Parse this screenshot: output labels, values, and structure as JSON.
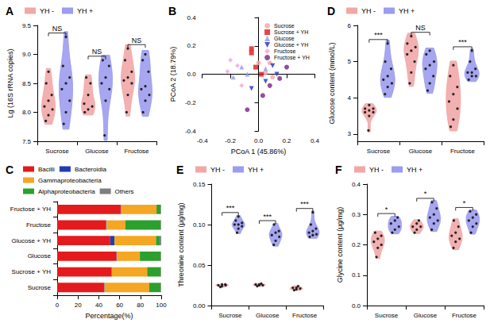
{
  "chart_data": [
    {
      "type": "violin",
      "title": "A",
      "y_label": "Lg (16S rRNA copies)",
      "categories": [
        "Sucrose",
        "Glucose",
        "Fructose"
      ],
      "ylim": [
        7.5,
        9.5
      ],
      "yticks": [
        7.5,
        {
          "value": 8,
          "label": "8.0"
        },
        8.5,
        {
          "value": 9,
          "label": "9.0"
        },
        9.5
      ],
      "legend": "top",
      "annotations": [
        "NS",
        "NS",
        "NS"
      ],
      "series": [
        {
          "name": "YH -",
          "color": "#f2a7a7",
          "values": [
            [
              7.85,
              7.95,
              8.05,
              8.1,
              8.2,
              8.3,
              8.5,
              8.7
            ],
            [
              8.0,
              8.05,
              8.1,
              8.15,
              8.3,
              8.5,
              8.6
            ],
            [
              8.0,
              8.3,
              8.5,
              8.55,
              8.6,
              8.7,
              8.9,
              9.1
            ]
          ]
        },
        {
          "name": "YH +",
          "color": "#9c9cf0",
          "values": [
            [
              7.8,
              8.0,
              8.2,
              8.4,
              8.5,
              8.6,
              8.8,
              9.3
            ],
            [
              7.6,
              8.2,
              8.4,
              8.5,
              8.6,
              8.8,
              8.9
            ],
            [
              8.0,
              8.2,
              8.3,
              8.4,
              8.45,
              8.7,
              8.9,
              9.0
            ]
          ]
        }
      ]
    },
    {
      "type": "scatter",
      "title": "B",
      "x_label": "PCoA 1 (45.86%)",
      "y_label": "PCoA 2 (18.79%)",
      "xlim": [
        -0.4,
        0.4
      ],
      "xticks": [
        -0.4,
        -0.2,
        {
          "value": 0,
          "label": "0.0"
        },
        0.2,
        0.4
      ],
      "ylim": [
        -0.4,
        0.4
      ],
      "yticks": [
        -0.4,
        -0.2,
        {
          "value": 0,
          "label": "0.0"
        },
        0.2,
        0.4
      ],
      "legend": "upper right",
      "series": [
        {
          "name": "Sucrose",
          "color": "#f4a6a6",
          "marker": "circle",
          "values": [
            [
              0.0,
              0.08
            ],
            [
              0.08,
              0.08
            ],
            [
              0.1,
              -0.02
            ],
            [
              0.05,
              0.01
            ]
          ]
        },
        {
          "name": "Sucrose + YH",
          "color": "#e0161b",
          "marker": "square",
          "values": [
            [
              -0.05,
              0.18
            ],
            [
              -0.05,
              0.15
            ],
            [
              -0.02,
              0.05
            ],
            [
              0.02,
              0.0
            ]
          ]
        },
        {
          "name": "Glucose",
          "color": "#8f97e8",
          "marker": "triangle",
          "values": [
            [
              -0.18,
              -0.02
            ],
            [
              -0.12,
              0.05
            ],
            [
              -0.08,
              0.0
            ],
            [
              0.05,
              0.04
            ]
          ]
        },
        {
          "name": "Glucose + YH",
          "color": "#1d2fbf",
          "marker": "triangle-down",
          "values": [
            [
              0.1,
              0.06
            ],
            [
              0.13,
              0.0
            ],
            [
              0.05,
              -0.05
            ],
            [
              -0.05,
              -0.1
            ]
          ]
        },
        {
          "name": "Fructose",
          "color": "#f5a3d6",
          "marker": "diamond",
          "values": [
            [
              -0.2,
              0.1
            ],
            [
              -0.22,
              0.02
            ],
            [
              -0.12,
              -0.08
            ],
            [
              -0.15,
              0.06
            ]
          ]
        },
        {
          "name": "Fructose + YH",
          "color": "#7a1f86",
          "marker": "circle",
          "values": [
            [
              0.2,
              0.05
            ],
            [
              0.15,
              -0.03
            ],
            [
              -0.08,
              -0.25
            ],
            [
              0.03,
              -0.15
            ],
            [
              0.08,
              -0.08
            ]
          ]
        }
      ]
    },
    {
      "type": "bar",
      "title": "C",
      "x_label": "Percentage(%)",
      "orientation": "horizontal",
      "stacked": true,
      "categories": [
        "Sucrose",
        "Sucrose + YH",
        "Glucose",
        "Glucose + YH",
        "Fructose",
        "Fructose + YH"
      ],
      "xlim": [
        0,
        100
      ],
      "xticks": [
        0,
        20,
        40,
        60,
        80,
        100
      ],
      "legend": "top",
      "series": [
        {
          "name": "Bacilli",
          "color": "#e41a1c",
          "values": [
            45,
            52,
            57,
            51,
            47,
            61
          ]
        },
        {
          "name": "Bacteroidia",
          "color": "#1f3cb5",
          "values": [
            0.5,
            0.5,
            0.5,
            4,
            0.5,
            0.5
          ]
        },
        {
          "name": "Gammaproteobacteria",
          "color": "#f5a623",
          "values": [
            43,
            34,
            22,
            40,
            18,
            34
          ]
        },
        {
          "name": "Alphaproteobacteria",
          "color": "#2ca02c",
          "values": [
            11,
            13,
            20,
            4,
            34,
            4
          ]
        },
        {
          "name": "Others",
          "color": "#7f7f7f",
          "values": [
            0.5,
            0.5,
            0.5,
            1,
            0.5,
            0.5
          ]
        }
      ]
    },
    {
      "type": "violin",
      "title": "D",
      "y_label": "Glucose content (mmol/L)",
      "categories": [
        "Sucrose",
        "Glucose",
        "Fructose"
      ],
      "ylim": [
        2.8,
        6
      ],
      "yticks": [
        3,
        4,
        5,
        6
      ],
      "legend": "top",
      "annotations": [
        "***",
        "NS",
        "***"
      ],
      "series": [
        {
          "name": "YH -",
          "color": "#f2a7a7",
          "values": [
            [
              3.1,
              3.5,
              3.6,
              3.6,
              3.65,
              3.7,
              3.7,
              3.8
            ],
            [
              4.4,
              4.7,
              5.0,
              5.2,
              5.3,
              5.4,
              5.5,
              5.7
            ],
            [
              3.2,
              3.4,
              3.7,
              3.9,
              4.1,
              4.3,
              4.6,
              4.9
            ]
          ]
        },
        {
          "name": "YH +",
          "color": "#9c9cf0",
          "values": [
            [
              4.1,
              4.3,
              4.4,
              4.5,
              4.6,
              4.8,
              5.0,
              5.5
            ],
            [
              4.2,
              4.4,
              4.6,
              4.8,
              4.9,
              5.0,
              5.2,
              5.3
            ],
            [
              4.5,
              4.6,
              4.6,
              4.7,
              4.7,
              4.8,
              5.0,
              5.3
            ]
          ]
        }
      ]
    },
    {
      "type": "violin",
      "title": "E",
      "y_label": "Threonine content (μg/mg)",
      "categories": [
        "Sucrose",
        "Glucose",
        "Fructose"
      ],
      "ylim": [
        0,
        0.15
      ],
      "yticks": [
        {
          "value": 0,
          "label": "0.00"
        },
        {
          "value": 0.05,
          "label": "0.05"
        },
        {
          "value": 0.1,
          "label": "0.10"
        },
        {
          "value": 0.15,
          "label": "0.15"
        }
      ],
      "legend": "top",
      "annotations": [
        "***",
        "***",
        "***"
      ],
      "series": [
        {
          "name": "YH -",
          "color": "#f2a7a7",
          "values": [
            [
              0.023,
              0.024,
              0.025,
              0.025,
              0.026,
              0.026
            ],
            [
              0.024,
              0.025,
              0.025,
              0.026,
              0.026,
              0.027
            ],
            [
              0.019,
              0.02,
              0.021,
              0.022,
              0.022,
              0.024
            ]
          ]
        },
        {
          "name": "YH +",
          "color": "#9c9cf0",
          "values": [
            [
              0.09,
              0.095,
              0.098,
              0.1,
              0.1,
              0.102,
              0.105,
              0.11
            ],
            [
              0.075,
              0.08,
              0.085,
              0.087,
              0.09,
              0.092,
              0.1
            ],
            [
              0.085,
              0.087,
              0.088,
              0.09,
              0.092,
              0.095,
              0.1,
              0.115
            ]
          ]
        }
      ]
    },
    {
      "type": "violin",
      "title": "F",
      "y_label": "Glycine content (μg/mg)",
      "categories": [
        "Sucrose",
        "Glucose",
        "Fructose"
      ],
      "ylim": [
        0,
        0.4
      ],
      "yticks": [
        {
          "value": 0,
          "label": "0.0"
        },
        0.1,
        0.2,
        0.3,
        0.4
      ],
      "legend": "top",
      "annotations": [
        "*",
        "*",
        "*"
      ],
      "series": [
        {
          "name": "YH -",
          "color": "#f2a7a7",
          "values": [
            [
              0.16,
              0.19,
              0.2,
              0.21,
              0.22,
              0.23,
              0.24
            ],
            [
              0.24,
              0.25,
              0.26,
              0.26,
              0.27,
              0.28
            ],
            [
              0.19,
              0.21,
              0.22,
              0.23,
              0.24,
              0.26,
              0.28
            ]
          ]
        },
        {
          "name": "YH +",
          "color": "#9c9cf0",
          "values": [
            [
              0.24,
              0.25,
              0.26,
              0.27,
              0.28,
              0.29
            ],
            [
              0.25,
              0.27,
              0.28,
              0.29,
              0.3,
              0.32,
              0.34
            ],
            [
              0.24,
              0.26,
              0.27,
              0.28,
              0.29,
              0.3,
              0.31
            ]
          ]
        }
      ]
    }
  ]
}
